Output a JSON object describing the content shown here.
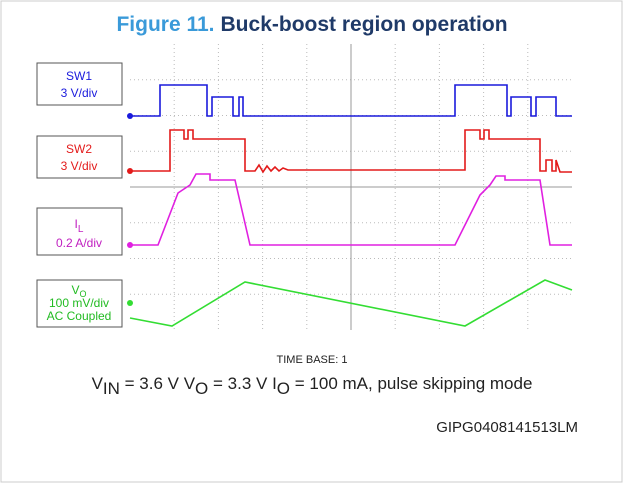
{
  "header": {
    "number": "Figure 11.",
    "title": "Buck-boost region operation"
  },
  "channels": [
    {
      "name": "SW1",
      "scale": "3 V/div"
    },
    {
      "name": "SW2",
      "scale": "3 V/div"
    },
    {
      "name": "I",
      "sub": "L",
      "scale": "0.2 A/div"
    },
    {
      "name": "V",
      "sub": "O",
      "scale": "100 mV/div",
      "coupling": "AC Coupled"
    }
  ],
  "time_base": "TIME BASE: 1",
  "caption": [
    "V",
    "IN",
    " = 3.6 V V",
    "O",
    " = 3.3 V I",
    "O",
    " = 100 mA, pulse skipping mode"
  ],
  "figure_id": "GIPG0408141513LM"
}
